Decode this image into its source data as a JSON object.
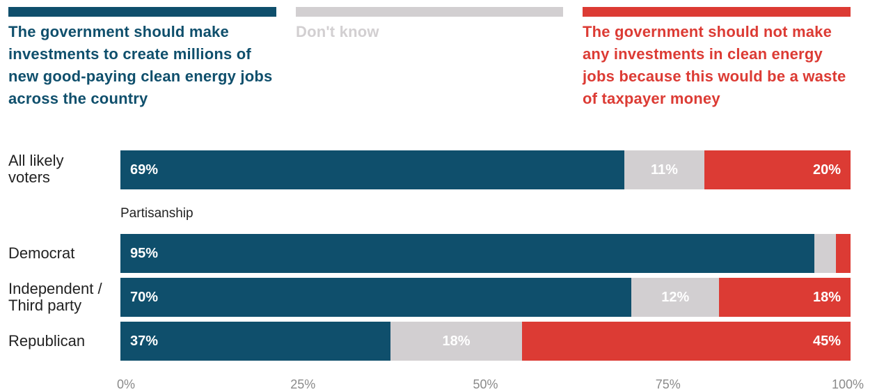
{
  "chart_data": {
    "type": "bar",
    "orientation": "horizontal",
    "stacked": true,
    "series": [
      {
        "name": "The government should make investments to create millions of new good-paying clean energy jobs across the country",
        "color": "#0f4f6c",
        "text_color": "#ffffff",
        "label_align": "left"
      },
      {
        "name": "Don't know",
        "color": "#d2cfd1",
        "text_color": "#ffffff",
        "label_align": "center"
      },
      {
        "name": "The government should not make any investments in clean energy jobs because this would be a waste of taxpayer money",
        "color": "#dc3b34",
        "text_color": "#ffffff",
        "label_align": "right"
      }
    ],
    "legend_text_colors": [
      "#0f4f6c",
      "#d2cfd1",
      "#dc3b34"
    ],
    "rows": [
      {
        "label": "All likely\nvoters",
        "values": [
          69,
          11,
          20
        ],
        "labels": [
          "69%",
          "11%",
          "20%"
        ]
      },
      {
        "label": "Democrat",
        "values": [
          95,
          3,
          2
        ],
        "labels": [
          "95%",
          "",
          ""
        ]
      },
      {
        "label": "Independent /\nThird party",
        "values": [
          70,
          12,
          18
        ],
        "labels": [
          "70%",
          "12%",
          "18%"
        ]
      },
      {
        "label": "Republican",
        "values": [
          37,
          18,
          45
        ],
        "labels": [
          "37%",
          "18%",
          "45%"
        ]
      }
    ],
    "group_label": "Partisanship",
    "xlim": [
      0,
      100
    ],
    "xticks": [
      0,
      25,
      50,
      75,
      100
    ],
    "xtick_labels": [
      "0%",
      "25%",
      "50%",
      "75%",
      "100%"
    ],
    "legend_position": "top"
  }
}
